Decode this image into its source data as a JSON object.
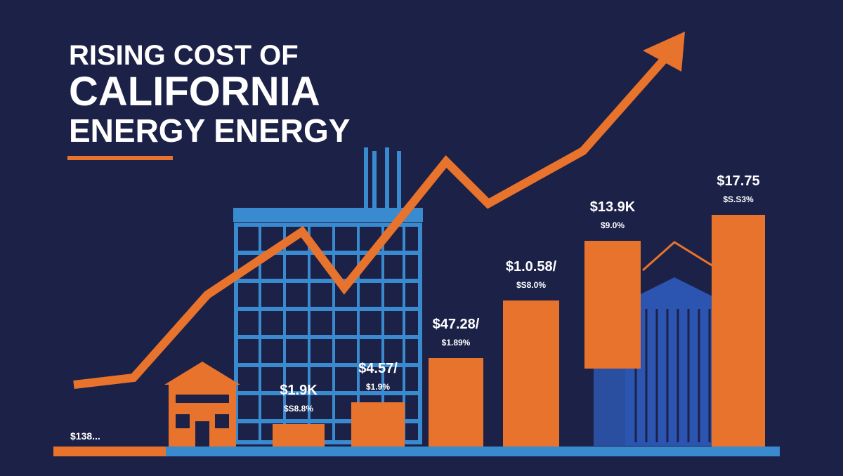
{
  "title": {
    "lines": [
      "RISING COST OF",
      "CALIFORNIA",
      "ENERGY ENERGY"
    ]
  },
  "corner_label": "$138...",
  "bars": [
    {
      "value": "$1.9K",
      "change": "$S8.8%"
    },
    {
      "value": "$4.57/",
      "change": "$1.9%"
    },
    {
      "value": "$47.28/",
      "change": "$1.89%"
    },
    {
      "value": "$1.0.58/",
      "change": "$S8.0%"
    },
    {
      "value": "$13.9K",
      "change": "$9.0%"
    },
    {
      "value": "$17.75",
      "change": "$S.S3%"
    }
  ]
}
